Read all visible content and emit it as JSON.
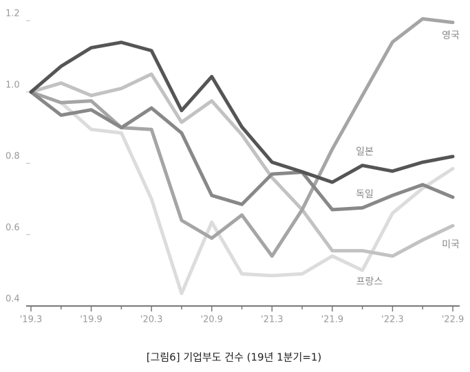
{
  "chart_data": {
    "type": "line",
    "title": "[그림6] 기업부도 건수 (19년 1분기=1)",
    "categories": [
      "'19.3",
      null,
      "'19.9",
      null,
      "'20.3",
      null,
      "'20.9",
      null,
      "'21.3",
      null,
      "'21.9",
      null,
      "'22.3",
      null,
      "'22.9"
    ],
    "series": [
      {
        "name": "프랑스",
        "color": "#dcdcdc",
        "values": [
          1.0,
          0.97,
          0.895,
          0.885,
          0.7,
          0.435,
          0.635,
          0.49,
          0.485,
          0.49,
          0.54,
          0.5,
          0.66,
          0.73,
          0.785
        ]
      },
      {
        "name": "미국",
        "color": "#c2c2c2",
        "values": [
          1.0,
          1.025,
          0.99,
          1.01,
          1.05,
          0.915,
          0.975,
          0.88,
          0.76,
          0.67,
          0.555,
          0.555,
          0.54,
          0.585,
          0.625
        ]
      },
      {
        "name": "영국",
        "color": "#a5a5a5",
        "values": [
          1.0,
          0.97,
          0.975,
          0.9,
          0.895,
          0.64,
          0.59,
          0.655,
          0.54,
          0.67,
          0.84,
          0.99,
          1.14,
          1.205,
          1.195
        ]
      },
      {
        "name": "독일",
        "color": "#888888",
        "values": [
          1.0,
          0.935,
          0.95,
          0.9,
          0.955,
          0.885,
          0.71,
          0.685,
          0.77,
          0.775,
          0.67,
          0.675,
          0.71,
          0.74,
          0.705
        ]
      },
      {
        "name": "일본",
        "color": "#555555",
        "values": [
          1.0,
          1.072,
          1.124,
          1.139,
          1.116,
          0.948,
          1.043,
          0.902,
          0.803,
          0.776,
          0.747,
          0.794,
          0.778,
          0.803,
          0.819
        ]
      }
    ],
    "ylim": [
      0.4,
      1.2
    ],
    "yticks": [
      0.4,
      0.6,
      0.8,
      {
        "value": 1,
        "label": "1.0"
      },
      1.2
    ],
    "grid": false
  }
}
